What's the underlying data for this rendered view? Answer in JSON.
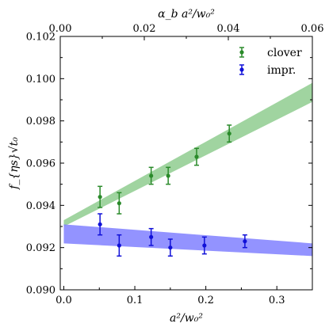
{
  "chart_data": {
    "type": "scatter",
    "title": "",
    "xlabel": "a²/w₀²",
    "ylabel": "f_{ηs}√t₀",
    "top_xlabel": "α_b a²/w₀²",
    "xlim": [
      -0.005,
      0.35
    ],
    "ylim": [
      0.09,
      0.102
    ],
    "top_xlim": [
      0.0,
      0.06
    ],
    "x_ticks": [
      0.0,
      0.1,
      0.2,
      0.3
    ],
    "x_tick_labels": [
      "0.0",
      "0.1",
      "0.2",
      "0.3"
    ],
    "top_x_ticks": [
      0.0,
      0.02,
      0.04,
      0.06
    ],
    "top_x_tick_labels": [
      "0.00",
      "0.02",
      "0.04",
      "0.06"
    ],
    "y_ticks": [
      0.09,
      0.092,
      0.094,
      0.096,
      0.098,
      0.1,
      0.102
    ],
    "y_tick_labels": [
      "0.090",
      "0.092",
      "0.094",
      "0.096",
      "0.098",
      "0.100",
      "0.102"
    ],
    "legend_position": "top-right",
    "series": [
      {
        "name": "clover",
        "color": "#2a8a2a",
        "band_color": "#8fcc8f",
        "points": [
          {
            "x": 0.051,
            "y": 0.0944,
            "err": 0.0005
          },
          {
            "x": 0.078,
            "y": 0.0941,
            "err": 0.0005
          },
          {
            "x": 0.123,
            "y": 0.0954,
            "err": 0.0004
          },
          {
            "x": 0.147,
            "y": 0.0954,
            "err": 0.0004
          },
          {
            "x": 0.187,
            "y": 0.0963,
            "err": 0.0004
          },
          {
            "x": 0.233,
            "y": 0.0974,
            "err": 0.0004
          }
        ],
        "band": {
          "x": [
            0.0,
            0.35
          ],
          "lower": [
            0.093,
            0.0989
          ],
          "upper": [
            0.0933,
            0.0998
          ]
        }
      },
      {
        "name": "impr.",
        "color": "#1010d8",
        "band_color": "#8080ff",
        "points": [
          {
            "x": 0.051,
            "y": 0.0931,
            "err": 0.0005
          },
          {
            "x": 0.078,
            "y": 0.0921,
            "err": 0.0005
          },
          {
            "x": 0.123,
            "y": 0.0925,
            "err": 0.0004
          },
          {
            "x": 0.15,
            "y": 0.092,
            "err": 0.0004
          },
          {
            "x": 0.198,
            "y": 0.0921,
            "err": 0.0004
          },
          {
            "x": 0.255,
            "y": 0.0923,
            "err": 0.0003
          }
        ],
        "band": {
          "x": [
            0.0,
            0.35
          ],
          "lower": [
            0.0922,
            0.0916
          ],
          "upper": [
            0.0931,
            0.0922
          ]
        }
      }
    ]
  }
}
